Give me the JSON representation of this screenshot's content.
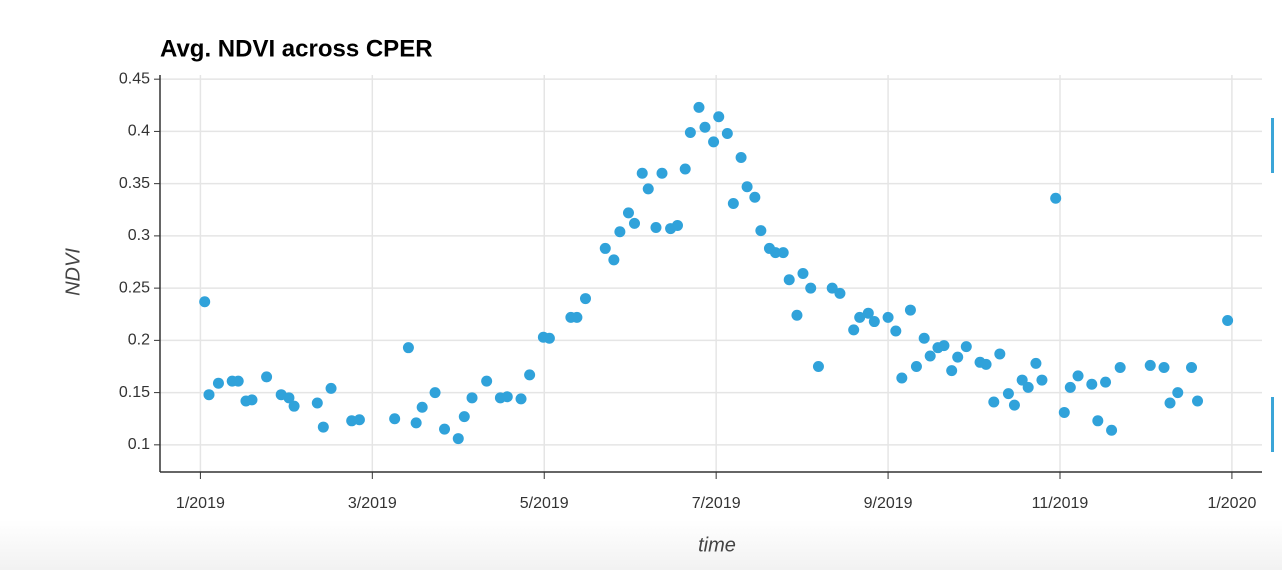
{
  "chart_data": {
    "type": "scatter",
    "title": "Avg. NDVI across CPER",
    "x_label": "time",
    "y_label": "NDVI",
    "color": "#30a2da",
    "grid": true,
    "xlim": [
      -0.47,
      12.35
    ],
    "ylim": [
      0.074,
      0.454
    ],
    "xticks": [
      {
        "value": 0,
        "label": "1/2019"
      },
      {
        "value": 2,
        "label": "3/2019"
      },
      {
        "value": 4,
        "label": "5/2019"
      },
      {
        "value": 6,
        "label": "7/2019"
      },
      {
        "value": 8,
        "label": "9/2019"
      },
      {
        "value": 10,
        "label": "11/2019"
      },
      {
        "value": 12,
        "label": "1/2020"
      }
    ],
    "yticks": [
      0.1,
      0.15,
      0.2,
      0.25,
      0.3,
      0.35,
      0.4,
      0.45
    ],
    "x": [
      0.05,
      0.1,
      0.21,
      0.37,
      0.44,
      0.53,
      0.6,
      0.77,
      0.94,
      1.03,
      1.09,
      1.36,
      1.43,
      1.52,
      1.76,
      1.85,
      2.26,
      2.42,
      2.51,
      2.58,
      2.73,
      2.84,
      3.0,
      3.07,
      3.16,
      3.33,
      3.49,
      3.57,
      3.73,
      3.83,
      3.99,
      4.06,
      4.31,
      4.38,
      4.48,
      4.71,
      4.81,
      4.88,
      4.98,
      5.05,
      5.14,
      5.21,
      5.3,
      5.37,
      5.47,
      5.55,
      5.64,
      5.7,
      5.8,
      5.87,
      5.97,
      6.03,
      6.13,
      6.2,
      6.29,
      6.36,
      6.45,
      6.52,
      6.62,
      6.69,
      6.78,
      6.85,
      6.94,
      7.01,
      7.1,
      7.19,
      7.35,
      7.44,
      7.6,
      7.67,
      7.77,
      7.84,
      8.0,
      8.09,
      8.16,
      8.26,
      8.33,
      8.42,
      8.49,
      8.58,
      8.65,
      8.74,
      8.81,
      8.91,
      9.07,
      9.14,
      9.23,
      9.3,
      9.4,
      9.47,
      9.56,
      9.63,
      9.72,
      9.79,
      9.95,
      10.05,
      10.12,
      10.21,
      10.37,
      10.44,
      10.53,
      10.6,
      10.7,
      11.05,
      11.21,
      11.28,
      11.37,
      11.53,
      11.6,
      11.95
    ],
    "values": [
      0.237,
      0.148,
      0.159,
      0.161,
      0.161,
      0.142,
      0.143,
      0.165,
      0.148,
      0.145,
      0.137,
      0.14,
      0.117,
      0.154,
      0.123,
      0.124,
      0.125,
      0.193,
      0.121,
      0.136,
      0.15,
      0.115,
      0.106,
      0.127,
      0.145,
      0.161,
      0.145,
      0.146,
      0.144,
      0.167,
      0.203,
      0.202,
      0.222,
      0.222,
      0.24,
      0.288,
      0.277,
      0.304,
      0.322,
      0.312,
      0.36,
      0.345,
      0.308,
      0.36,
      0.307,
      0.31,
      0.364,
      0.399,
      0.423,
      0.404,
      0.39,
      0.414,
      0.398,
      0.331,
      0.375,
      0.347,
      0.337,
      0.305,
      0.288,
      0.284,
      0.284,
      0.258,
      0.224,
      0.264,
      0.25,
      0.175,
      0.25,
      0.245,
      0.21,
      0.222,
      0.226,
      0.218,
      0.222,
      0.209,
      0.164,
      0.229,
      0.175,
      0.202,
      0.185,
      0.193,
      0.195,
      0.171,
      0.184,
      0.194,
      0.179,
      0.177,
      0.141,
      0.187,
      0.149,
      0.138,
      0.162,
      0.155,
      0.178,
      0.162,
      0.336,
      0.131,
      0.155,
      0.166,
      0.158,
      0.123,
      0.16,
      0.114,
      0.174,
      0.176,
      0.174,
      0.14,
      0.15,
      0.174,
      0.142,
      0.219
    ]
  }
}
